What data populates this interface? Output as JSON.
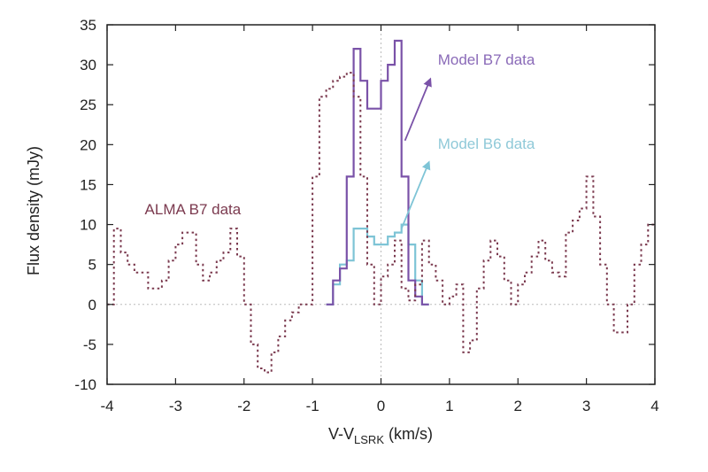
{
  "chart_data": {
    "type": "line",
    "xlabel": "V-V",
    "xlabel_sub": "LSRK",
    "xlabel_unit": " (km/s)",
    "ylabel": "Flux density (mJy)",
    "xlim": [
      -4,
      4
    ],
    "ylim": [
      -10,
      35
    ],
    "xticks": [
      -4,
      -3,
      -2,
      -1,
      0,
      1,
      2,
      3,
      4
    ],
    "yticks": [
      -10,
      -5,
      0,
      5,
      10,
      15,
      20,
      25,
      30,
      35
    ],
    "grid": "zero-lines dotted",
    "series": [
      {
        "name": "ALMA B7 data",
        "style": "dotted-step",
        "color": "#7b3a4f",
        "edges": [
          -4.0,
          -3.9,
          -3.8,
          -3.7,
          -3.6,
          -3.5,
          -3.4,
          -3.3,
          -3.2,
          -3.1,
          -3.0,
          -2.9,
          -2.8,
          -2.7,
          -2.6,
          -2.5,
          -2.4,
          -2.3,
          -2.2,
          -2.1,
          -2.0,
          -1.9,
          -1.8,
          -1.7,
          -1.6,
          -1.5,
          -1.4,
          -1.3,
          -1.2,
          -1.1,
          -1.0,
          -0.9,
          -0.8,
          -0.7,
          -0.6,
          -0.5,
          -0.4,
          -0.3,
          -0.2,
          -0.1,
          0.0,
          0.1,
          0.2,
          0.3,
          0.4,
          0.5,
          0.6,
          0.7,
          0.8,
          0.9,
          1.0,
          1.1,
          1.2,
          1.3,
          1.4,
          1.5,
          1.6,
          1.7,
          1.8,
          1.9,
          2.0,
          2.1,
          2.2,
          2.3,
          2.4,
          2.5,
          2.6,
          2.7,
          2.8,
          2.9,
          3.0,
          3.1,
          3.2,
          3.3,
          3.4,
          3.5,
          3.6,
          3.7,
          3.8,
          3.9,
          4.0
        ],
        "values": [
          0,
          9.5,
          6.5,
          5,
          4,
          4,
          2,
          2,
          3,
          5.5,
          7.5,
          9,
          9,
          5,
          3,
          4,
          5.5,
          6.5,
          9.5,
          6,
          0,
          -5,
          -8,
          -8.5,
          -6,
          -4,
          -2,
          -1,
          0,
          0,
          16,
          26,
          27,
          28,
          28.5,
          29,
          26,
          16,
          5,
          0,
          3.5,
          5,
          8,
          2,
          0.5,
          2.5,
          8,
          5,
          3,
          0,
          1,
          2.5,
          -6,
          -4.5,
          2,
          5.5,
          8,
          6,
          3,
          0,
          2.5,
          4,
          6,
          8,
          5.5,
          4,
          3.5,
          9,
          10.5,
          12,
          16,
          11,
          5,
          0,
          -3.5,
          -3.5,
          0,
          5,
          7.5,
          10
        ]
      },
      {
        "name": "Model B7 data",
        "style": "solid-step",
        "color": "#7a52a8",
        "edges": [
          -0.8,
          -0.7,
          -0.6,
          -0.5,
          -0.4,
          -0.3,
          -0.2,
          -0.1,
          0.0,
          0.1,
          0.2,
          0.3,
          0.4,
          0.5,
          0.6,
          0.7
        ],
        "values": [
          0,
          3,
          4.5,
          16,
          32,
          28,
          24.5,
          24.5,
          28,
          30,
          33,
          16,
          3,
          1,
          0
        ]
      },
      {
        "name": "Model B6 data",
        "style": "solid-step",
        "color": "#7ec4d6",
        "edges": [
          -0.8,
          -0.7,
          -0.6,
          -0.5,
          -0.4,
          -0.3,
          -0.2,
          -0.1,
          0.0,
          0.1,
          0.2,
          0.3,
          0.4,
          0.5,
          0.6,
          0.7
        ],
        "values": [
          0,
          2.5,
          5,
          5.5,
          9.5,
          9.5,
          8.5,
          7.5,
          7.5,
          8.5,
          9,
          10,
          7.5,
          3,
          0
        ]
      }
    ],
    "annotations": [
      {
        "text": "Model B7 data",
        "color": "#8a6ab8",
        "x": 0.83,
        "y": 30.0,
        "arrow_from": [
          0.35,
          20.5
        ],
        "arrow_to": [
          0.72,
          28.2
        ]
      },
      {
        "text": "Model B6 data",
        "color": "#8fc9d8",
        "x": 0.83,
        "y": 19.5,
        "arrow_from": [
          0.3,
          9.5
        ],
        "arrow_to": [
          0.7,
          17.8
        ]
      },
      {
        "text": "ALMA B7 data",
        "color": "#7b3a4f",
        "x": -3.45,
        "y": 11.3
      }
    ]
  }
}
